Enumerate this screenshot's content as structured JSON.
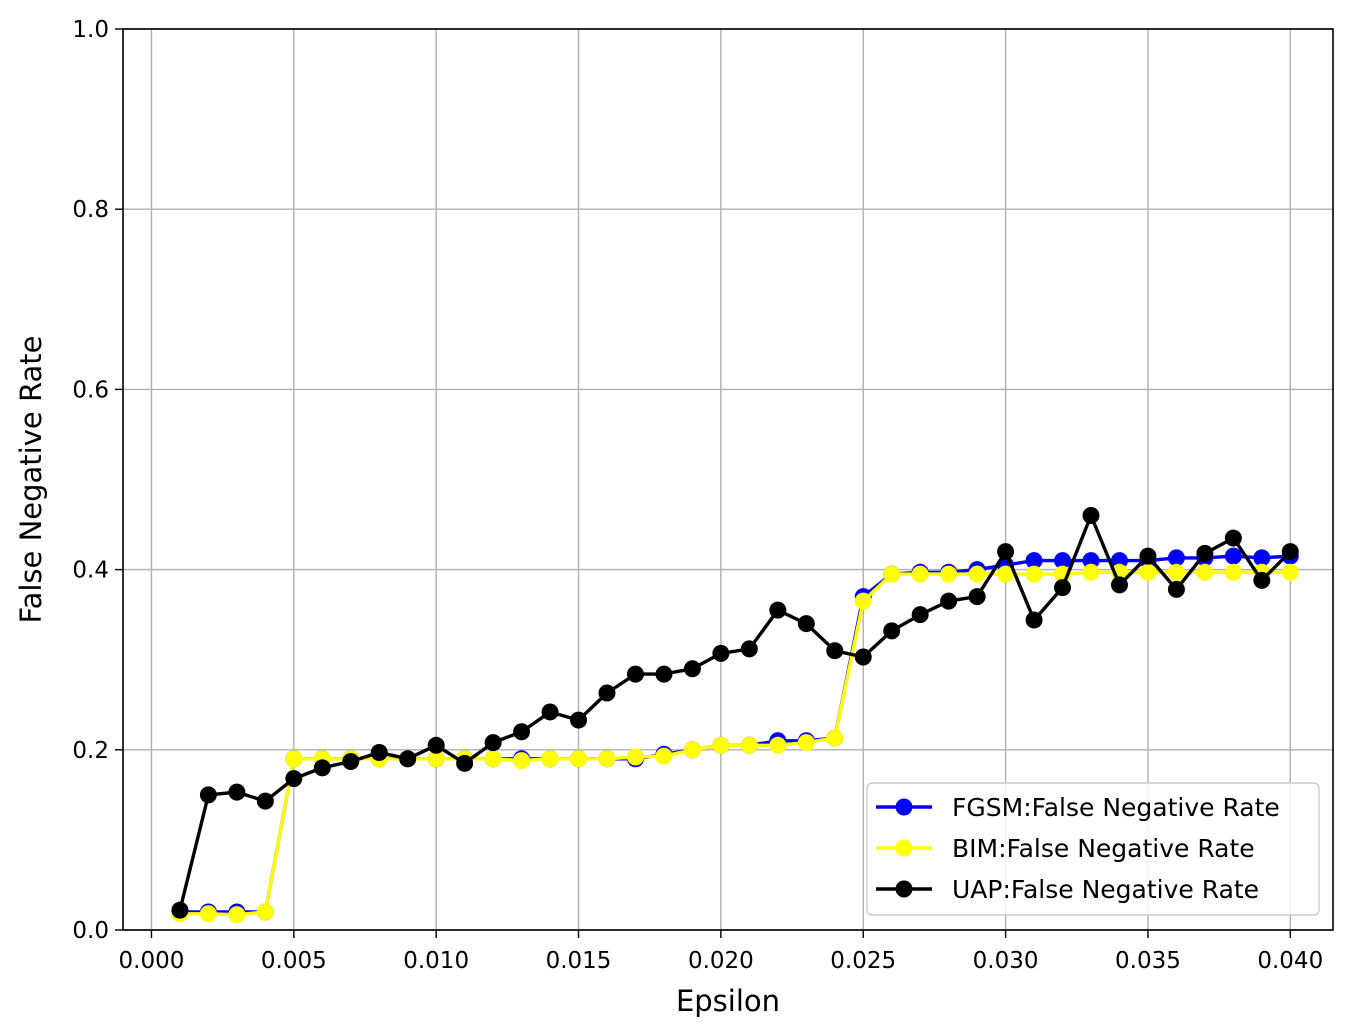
{
  "chart_data": {
    "type": "line",
    "xlabel": "Epsilon",
    "ylabel": "False Negative Rate",
    "xlim": [
      -0.001,
      0.0415
    ],
    "ylim": [
      0.0,
      1.0
    ],
    "grid": true,
    "legend_placement": "lower-right",
    "x_ticks": [
      "0.000",
      "0.005",
      "0.010",
      "0.015",
      "0.020",
      "0.025",
      "0.030",
      "0.035",
      "0.040"
    ],
    "y_ticks": [
      "0.0",
      "0.2",
      "0.4",
      "0.6",
      "0.8",
      "1.0"
    ],
    "x": [
      0.001,
      0.002,
      0.003,
      0.004,
      0.005,
      0.006,
      0.007,
      0.008,
      0.009,
      0.01,
      0.011,
      0.012,
      0.013,
      0.014,
      0.015,
      0.016,
      0.017,
      0.018,
      0.019,
      0.02,
      0.021,
      0.022,
      0.023,
      0.024,
      0.025,
      0.026,
      0.027,
      0.028,
      0.029,
      0.03,
      0.031,
      0.032,
      0.033,
      0.034,
      0.035,
      0.036,
      0.037,
      0.038,
      0.039,
      0.04
    ],
    "series": [
      {
        "name": "FGSM:False Negative Rate",
        "color": "#0000ff",
        "values": [
          0.02,
          0.02,
          0.02,
          0.02,
          0.19,
          0.19,
          0.19,
          0.19,
          0.19,
          0.19,
          0.19,
          0.19,
          0.19,
          0.19,
          0.19,
          0.19,
          0.19,
          0.195,
          0.2,
          0.205,
          0.205,
          0.21,
          0.21,
          0.213,
          0.37,
          0.395,
          0.397,
          0.397,
          0.4,
          0.405,
          0.41,
          0.41,
          0.41,
          0.41,
          0.41,
          0.413,
          0.413,
          0.415,
          0.413,
          0.415
        ]
      },
      {
        "name": "BIM:False Negative Rate",
        "color": "#ffff00",
        "values": [
          0.018,
          0.018,
          0.017,
          0.02,
          0.19,
          0.19,
          0.19,
          0.19,
          0.19,
          0.19,
          0.19,
          0.19,
          0.188,
          0.19,
          0.19,
          0.19,
          0.192,
          0.193,
          0.2,
          0.205,
          0.205,
          0.205,
          0.208,
          0.213,
          0.365,
          0.395,
          0.395,
          0.395,
          0.395,
          0.395,
          0.395,
          0.395,
          0.397,
          0.397,
          0.397,
          0.397,
          0.397,
          0.397,
          0.397,
          0.397
        ]
      },
      {
        "name": "UAP:False Negative Rate",
        "color": "#000000",
        "values": [
          0.022,
          0.15,
          0.153,
          0.143,
          0.168,
          0.18,
          0.187,
          0.197,
          0.19,
          0.205,
          0.185,
          0.208,
          0.22,
          0.242,
          0.233,
          0.263,
          0.284,
          0.284,
          0.29,
          0.307,
          0.312,
          0.355,
          0.34,
          0.31,
          0.303,
          0.332,
          0.35,
          0.365,
          0.37,
          0.42,
          0.344,
          0.38,
          0.46,
          0.383,
          0.415,
          0.378,
          0.418,
          0.435,
          0.388,
          0.42
        ]
      }
    ]
  }
}
